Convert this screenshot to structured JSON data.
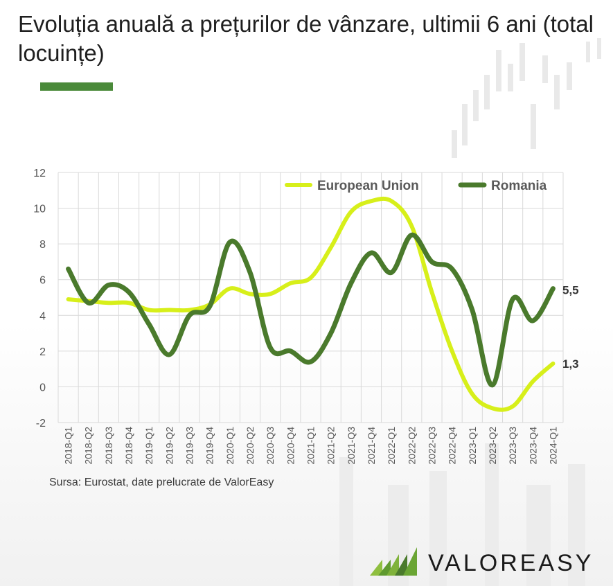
{
  "header": {
    "title": "Evoluția anuală a prețurilor de vânzare, ultimii 6 ani (total locuințe)"
  },
  "source": "Sursa: Eurostat, date prelucrate de ValorEasy",
  "logo": {
    "text": "VALOREASY",
    "part1": "VALOR",
    "part2": "EASY"
  },
  "colors": {
    "eu": "#d7ef1a",
    "romania": "#4a7a2c",
    "accent_bar": "#4a8a3a"
  },
  "chart_data": {
    "type": "line",
    "title": "",
    "xlabel": "",
    "ylabel": "",
    "ylim": [
      -2,
      12
    ],
    "yticks": [
      -2,
      0,
      2,
      4,
      6,
      8,
      10,
      12
    ],
    "grid": true,
    "legend_position": "top-right",
    "categories": [
      "2018-Q1",
      "2018-Q2",
      "2018-Q3",
      "2018-Q4",
      "2019-Q1",
      "2019-Q2",
      "2019-Q3",
      "2019-Q4",
      "2020-Q1",
      "2020-Q2",
      "2020-Q3",
      "2020-Q4",
      "2021-Q1",
      "2021-Q2",
      "2021-Q3",
      "2021-Q4",
      "2022-Q1",
      "2022-Q2",
      "2022-Q3",
      "2022-Q4",
      "2023-Q1",
      "2023-Q2",
      "2023-Q3",
      "2023-Q4",
      "2024-Q1"
    ],
    "series": [
      {
        "name": "European Union",
        "color": "#d7ef1a",
        "values": [
          4.9,
          4.8,
          4.7,
          4.7,
          4.3,
          4.3,
          4.3,
          4.6,
          5.5,
          5.2,
          5.2,
          5.8,
          6.1,
          7.8,
          9.8,
          10.4,
          10.4,
          9.0,
          5.3,
          2.0,
          -0.4,
          -1.2,
          -1.1,
          0.3,
          1.3
        ]
      },
      {
        "name": "Romania",
        "color": "#4a7a2c",
        "values": [
          6.6,
          4.7,
          5.7,
          5.3,
          3.5,
          1.8,
          4.0,
          4.5,
          8.1,
          6.4,
          2.2,
          2.0,
          1.4,
          3.0,
          5.8,
          7.5,
          6.4,
          8.5,
          7.0,
          6.6,
          4.3,
          0.1,
          4.9,
          3.7,
          5.5
        ]
      }
    ],
    "end_labels": {
      "romania": "5,5",
      "eu": "1,3"
    }
  }
}
